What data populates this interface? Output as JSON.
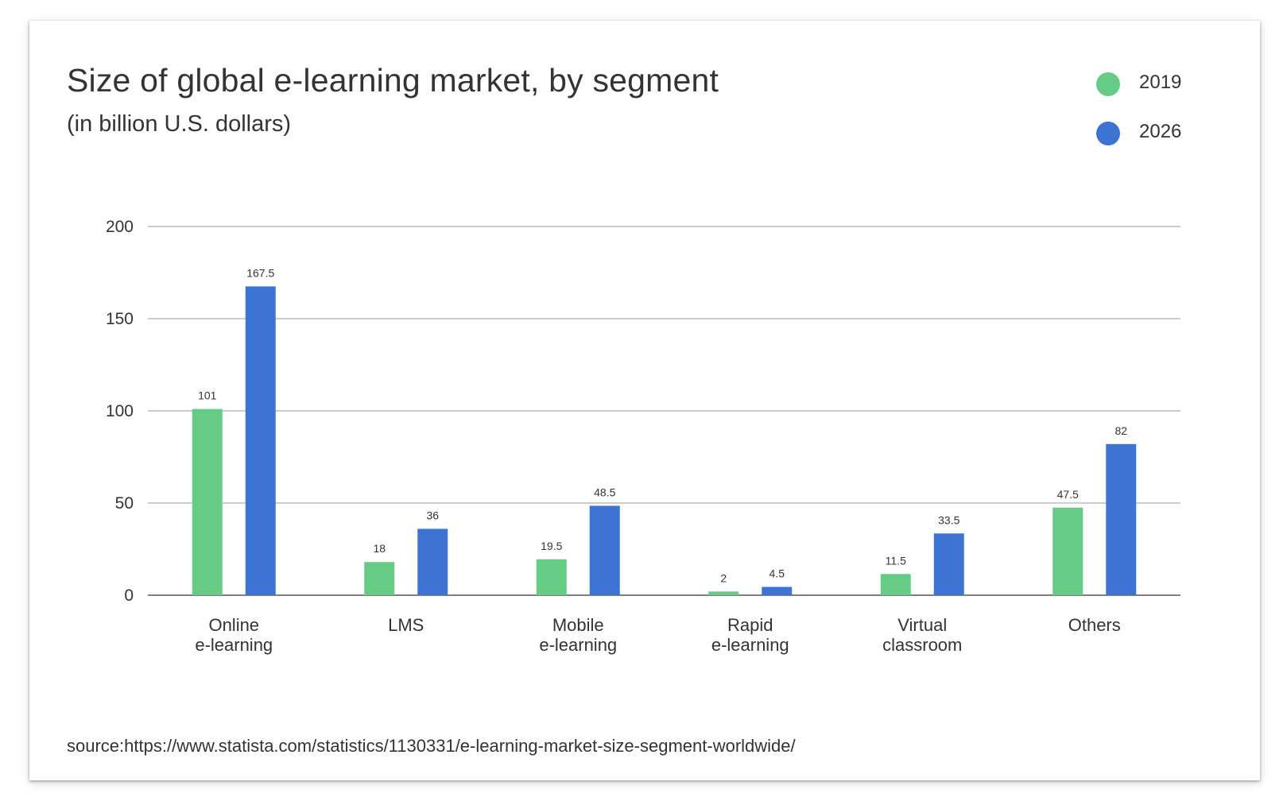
{
  "colors": {
    "series_2019": "#66CC85",
    "series_2026": "#3D74D4",
    "grid": "#999999",
    "text": "#333333"
  },
  "chart_data": {
    "type": "bar",
    "title": "Size of global e-learning market, by segment",
    "subtitle": "(in billion U.S. dollars)",
    "categories": [
      [
        "Online",
        "e-learning"
      ],
      [
        "LMS"
      ],
      [
        "Mobile",
        "e-learning"
      ],
      [
        "Rapid",
        "e-learning"
      ],
      [
        "Virtual",
        "classroom"
      ],
      [
        "Others"
      ]
    ],
    "series": [
      {
        "name": "2019",
        "values": [
          101,
          18,
          19.5,
          2,
          11.5,
          47.5
        ],
        "labels": [
          "101",
          "18",
          "19.5",
          "2",
          "11.5",
          "47.5"
        ]
      },
      {
        "name": "2026",
        "values": [
          167.5,
          36,
          48.5,
          4.5,
          33.5,
          82
        ],
        "labels": [
          "167.5",
          "36",
          "48.5",
          "4.5",
          "33.5",
          "82"
        ]
      }
    ],
    "ylim": [
      0,
      200
    ],
    "yticks": [
      0,
      50,
      100,
      150,
      200
    ],
    "grid": true,
    "legend_position": "top-right",
    "xlabel": "",
    "ylabel": ""
  },
  "legend": [
    {
      "label": "2019",
      "color": "#66CC85"
    },
    {
      "label": "2026",
      "color": "#3D74D4"
    }
  ],
  "source": "source:https://www.statista.com/statistics/1130331/e-learning-market-size-segment-worldwide/"
}
